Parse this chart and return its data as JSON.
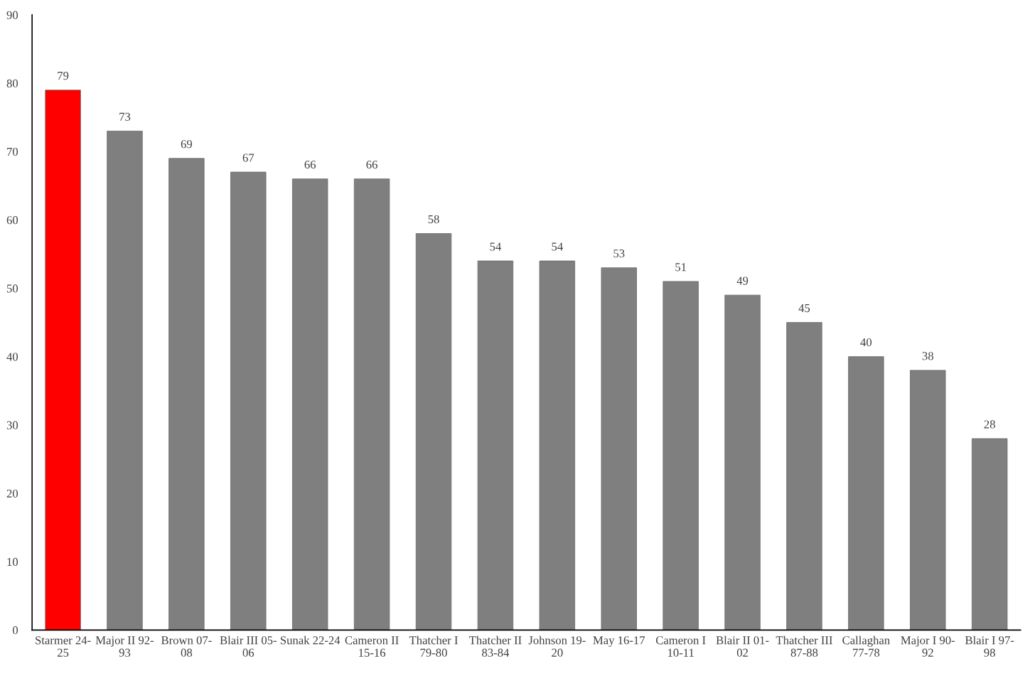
{
  "chart_data": {
    "type": "bar",
    "categories": [
      "Starmer 24-\n25",
      "Major II 92-\n93",
      "Brown 07-\n08",
      "Blair III 05-\n06",
      "Sunak 22-24",
      "Cameron II\n15-16",
      "Thatcher I\n79-80",
      "Thatcher II\n83-84",
      "Johnson 19-\n20",
      "May 16-17",
      "Cameron I\n10-11",
      "Blair II 01-\n02",
      "Thatcher III\n87-88",
      "Callaghan\n77-78",
      "Major I 90-\n92",
      "Blair I 97-\n98"
    ],
    "values": [
      79,
      73,
      69,
      67,
      66,
      66,
      58,
      54,
      54,
      53,
      51,
      49,
      45,
      40,
      38,
      28
    ],
    "colors": [
      "#ff0000",
      "#7f7f7f",
      "#7f7f7f",
      "#7f7f7f",
      "#7f7f7f",
      "#7f7f7f",
      "#7f7f7f",
      "#7f7f7f",
      "#7f7f7f",
      "#7f7f7f",
      "#7f7f7f",
      "#7f7f7f",
      "#7f7f7f",
      "#7f7f7f",
      "#7f7f7f",
      "#7f7f7f"
    ],
    "ylim": [
      0,
      90
    ],
    "yticks": [
      0,
      10,
      20,
      30,
      40,
      50,
      60,
      70,
      80,
      90
    ],
    "data_labels": true,
    "grid": false,
    "legend": false
  }
}
